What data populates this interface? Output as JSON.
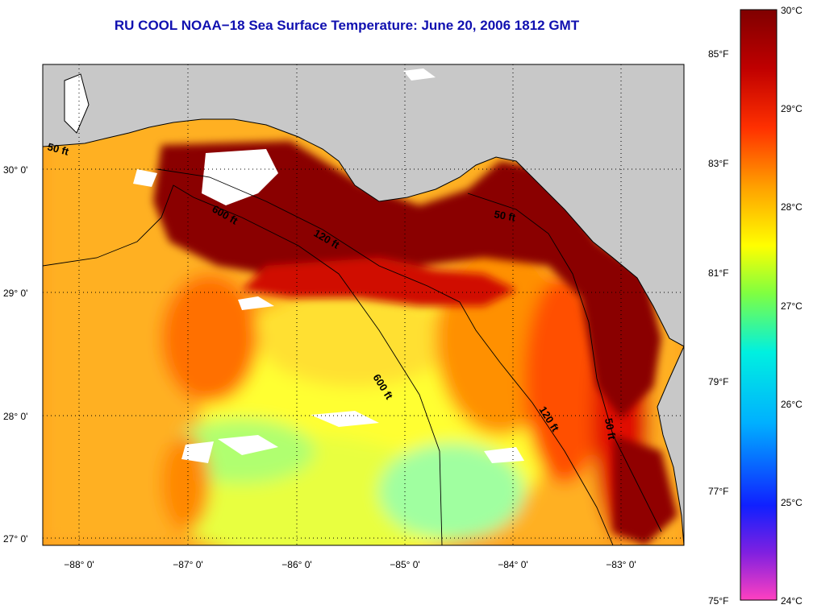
{
  "title": "RU COOL  NOAA−18  Sea Surface Temperature:  June 20, 2006 1812 GMT",
  "map": {
    "lat_labels": [
      "30° 0'",
      "29° 0'",
      "28° 0'",
      "27° 0'"
    ],
    "lon_labels": [
      "−88° 0'",
      "−87° 0'",
      "−86° 0'",
      "−85° 0'",
      "−84° 0'",
      "−83° 0'"
    ],
    "contour_labels": [
      "50 ft",
      "600 ft",
      "120 ft",
      "50 ft",
      "600 ft",
      "120 ft",
      "50 ft"
    ],
    "land_color": "#c8c8c8"
  },
  "colorbar": {
    "celsius_labels": [
      "30°C",
      "29°C",
      "28°C",
      "27°C",
      "26°C",
      "25°C",
      "24°C"
    ],
    "fahrenheit_labels": [
      "85°F",
      "83°F",
      "81°F",
      "79°F",
      "77°F",
      "75°F"
    ],
    "colors": [
      "#ff40c0",
      "#8020e0",
      "#1020ff",
      "#00b0ff",
      "#00f0e0",
      "#80ff40",
      "#ffff00",
      "#ffa000",
      "#ff3000",
      "#c00000",
      "#800000"
    ]
  }
}
